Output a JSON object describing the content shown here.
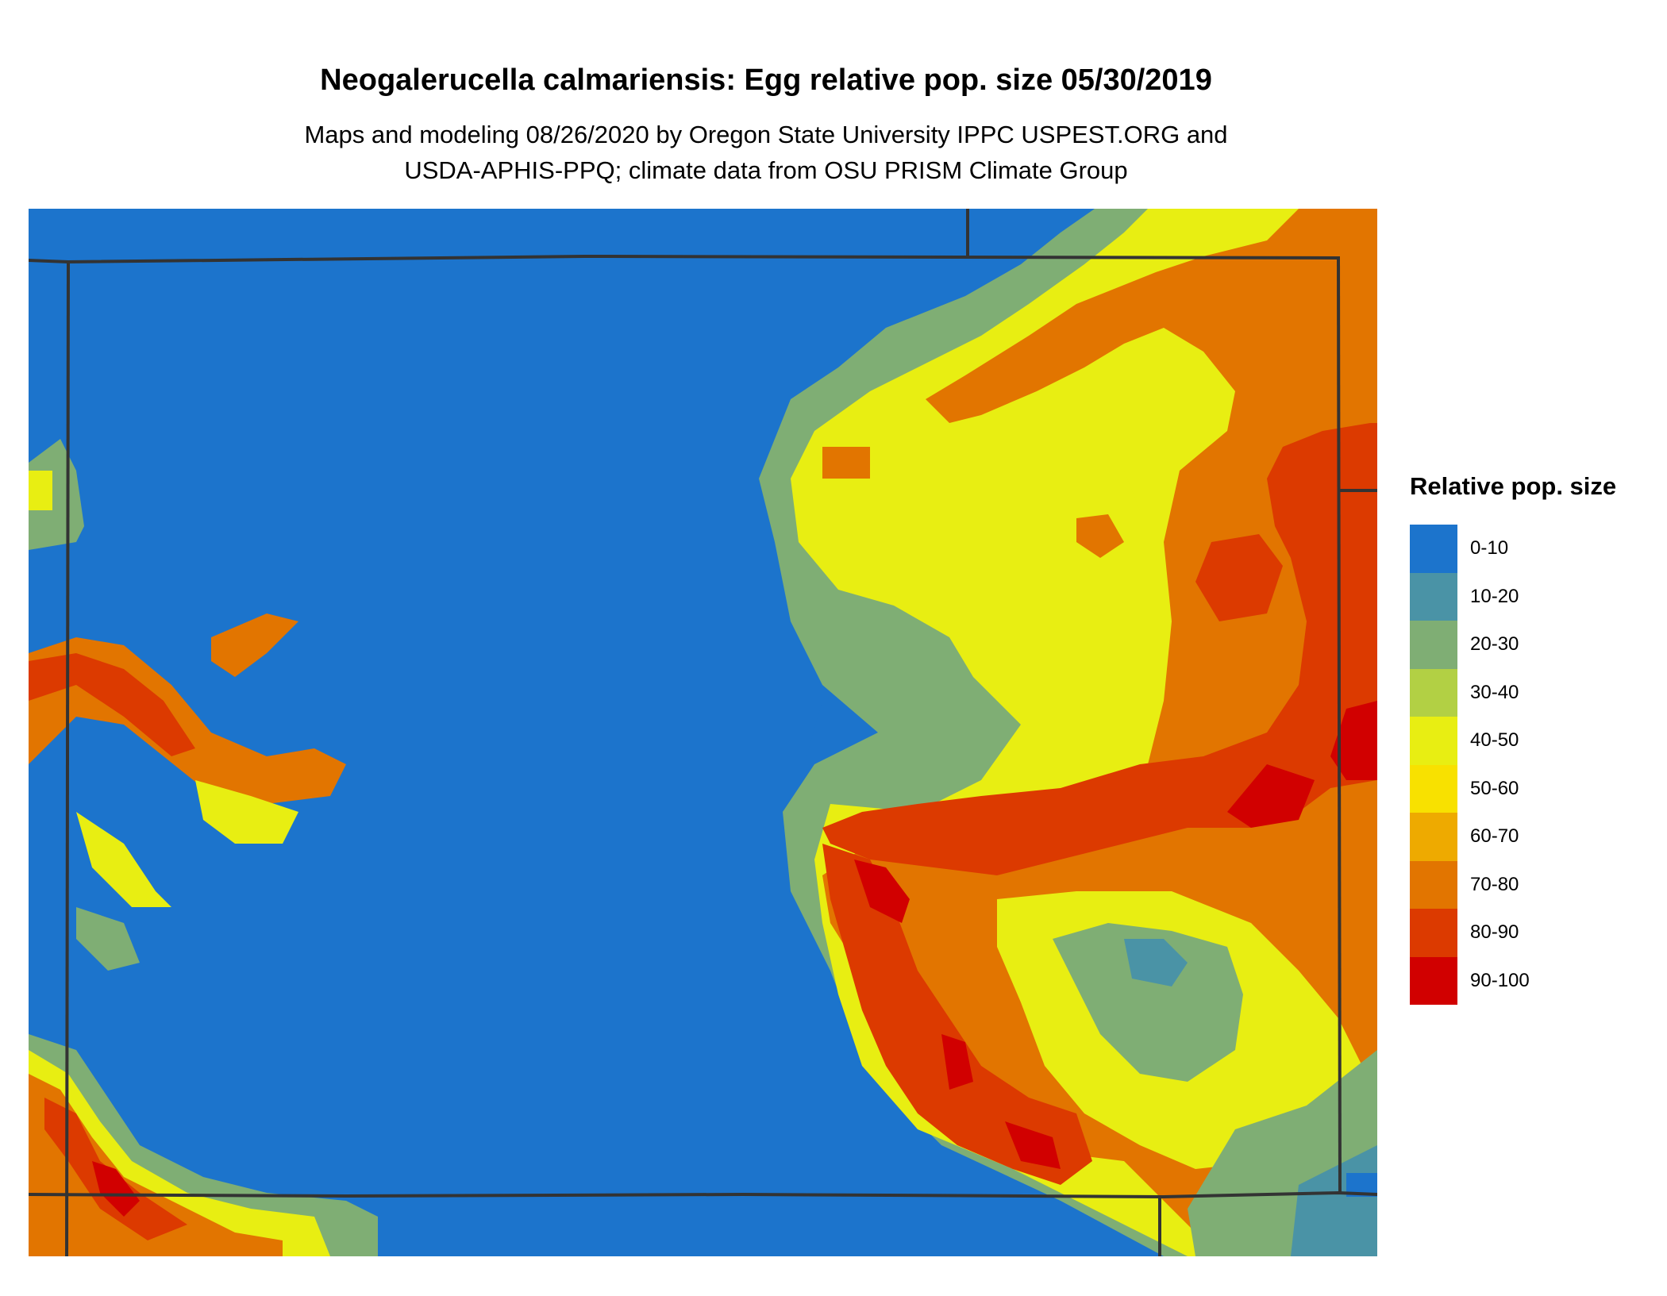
{
  "title": "Neogalerucella calmariensis: Egg relative pop. size 05/30/2019",
  "subtitle_line1": "Maps and modeling 08/26/2020 by Oregon State University IPPC USPEST.ORG and",
  "subtitle_line2": "USDA-APHIS-PPQ; climate data from OSU PRISM Climate Group",
  "legend": {
    "title": "Relative pop. size",
    "items": [
      {
        "label": "0-10",
        "color": "#1c74cc"
      },
      {
        "label": "10-20",
        "color": "#4a93a6"
      },
      {
        "label": "20-30",
        "color": "#7fae74"
      },
      {
        "label": "30-40",
        "color": "#b2d044"
      },
      {
        "label": "40-50",
        "color": "#e8ee12"
      },
      {
        "label": "50-60",
        "color": "#f8e100"
      },
      {
        "label": "60-70",
        "color": "#eeaa00"
      },
      {
        "label": "70-80",
        "color": "#e27500"
      },
      {
        "label": "80-90",
        "color": "#dc3a00"
      },
      {
        "label": "90-100",
        "color": "#d10000"
      }
    ]
  }
}
